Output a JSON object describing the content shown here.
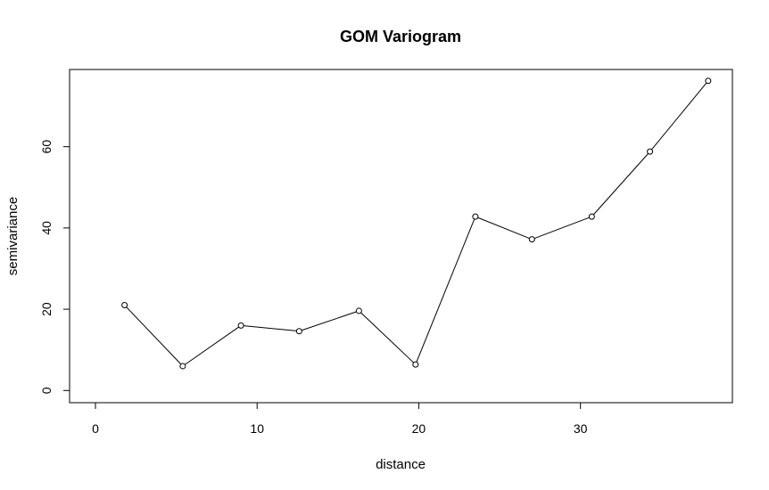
{
  "chart_data": {
    "type": "line",
    "title": "GOM Variogram",
    "xlabel": "distance",
    "ylabel": "semivariance",
    "xlim": [
      -1.6,
      39.4
    ],
    "ylim": [
      -3.0,
      79.0
    ],
    "xticks": [
      0,
      10,
      20,
      30
    ],
    "yticks": [
      0,
      20,
      40,
      60
    ],
    "x_tick_labels": [
      "0",
      "10",
      "20",
      "30"
    ],
    "y_tick_labels": [
      "0",
      "20",
      "40",
      "60"
    ],
    "grid": false,
    "markers": "open-circle",
    "series": [
      {
        "x": [
          1.8,
          5.4,
          9.0,
          12.6,
          16.3,
          19.8,
          23.5,
          27.0,
          30.7,
          34.3,
          37.9
        ],
        "y": [
          21.0,
          6.0,
          16.0,
          14.6,
          19.6,
          6.4,
          42.8,
          37.2,
          42.8,
          58.8,
          76.2
        ]
      }
    ],
    "colors": {
      "line": "#000000",
      "marker": "#000000",
      "background": "#ffffff"
    }
  }
}
